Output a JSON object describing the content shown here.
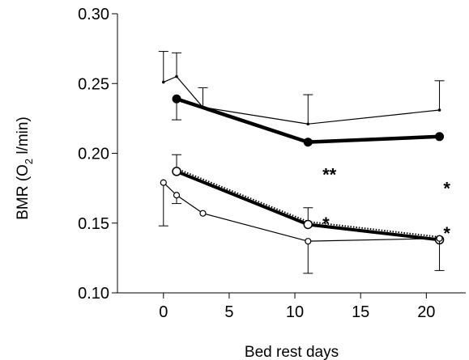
{
  "chart_data": {
    "type": "line",
    "title": "",
    "xlabel": "Bed rest days",
    "ylabel": "BMR (O₂ l/min)",
    "ylabel_parts": {
      "pre": "BMR (O",
      "sub": "2",
      "post": " l/min)"
    },
    "xlim": [
      -3.5,
      23
    ],
    "ylim": [
      0.1,
      0.3
    ],
    "x_ticks": [
      0,
      5,
      10,
      15,
      20
    ],
    "x_tick_labels": [
      "0",
      "5",
      "10",
      "15",
      "20"
    ],
    "y_ticks": [
      0.1,
      0.15,
      0.2,
      0.25,
      0.3
    ],
    "y_tick_labels": [
      "0.10",
      "0.15",
      "0.20",
      "0.25",
      "0.30"
    ],
    "grid": false,
    "legend": "none",
    "series": [
      {
        "style": "thin-solid-small-dots",
        "x": [
          0,
          1,
          3,
          11,
          21
        ],
        "y": [
          0.251,
          0.255,
          0.233,
          0.221,
          0.231
        ],
        "err": [
          0.022,
          0.017,
          0.014,
          0.021,
          0.021
        ],
        "err_dir": "up",
        "color": "#000000"
      },
      {
        "style": "thick-solid-filled-circles",
        "x": [
          1,
          11,
          21
        ],
        "y": [
          0.239,
          0.208,
          0.212
        ],
        "err": [
          0.015,
          0.0,
          0.0
        ],
        "err_dir": "down",
        "color": "#000000"
      },
      {
        "style": "thin-dotted-small-dots",
        "x": [
          1,
          11,
          21
        ],
        "y": [
          0.189,
          0.151,
          0.14
        ],
        "err": [
          0.01,
          0.01,
          0.0
        ],
        "err_dir": "up",
        "color": "#000000"
      },
      {
        "style": "thick-solid-open-circles",
        "x": [
          1,
          11,
          21
        ],
        "y": [
          0.187,
          0.149,
          0.138
        ],
        "err": [
          0.0,
          0.0,
          0.0
        ],
        "err_dir": "none",
        "color": "#000000"
      },
      {
        "style": "thin-solid-open-circles",
        "x": [
          0,
          1,
          3,
          11,
          21
        ],
        "y": [
          0.179,
          0.17,
          0.157,
          0.137,
          0.139
        ],
        "err": [
          0.031,
          0.006,
          0.0,
          0.023,
          0.023
        ],
        "err_dir": "down",
        "color": "#000000"
      }
    ],
    "annotations": [
      {
        "text": "**",
        "x": 12.1,
        "y": 0.185
      },
      {
        "text": "*",
        "x": 12.1,
        "y": 0.15
      },
      {
        "text": "*",
        "x": 21.3,
        "y": 0.175
      },
      {
        "text": "*",
        "x": 21.3,
        "y": 0.143
      }
    ]
  }
}
